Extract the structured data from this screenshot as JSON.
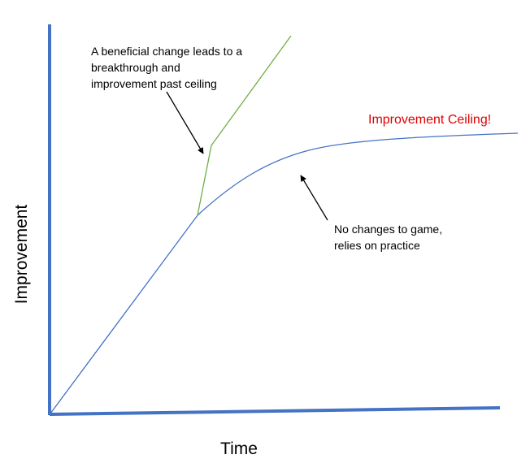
{
  "axes": {
    "x_label": "Time",
    "y_label": "Improvement"
  },
  "annotations": {
    "beneficial_change": [
      "A beneficial change leads to a",
      "breakthrough and",
      "improvement past ceiling"
    ],
    "no_changes": [
      "No changes to game,",
      "relies on practice"
    ],
    "ceiling": "Improvement Ceiling!"
  },
  "colors": {
    "axis": "#4472c4",
    "practice_curve": "#4472c4",
    "breakthrough_line": "#70ad47",
    "ceiling_text": "#e00000",
    "arrow": "#000000"
  }
}
